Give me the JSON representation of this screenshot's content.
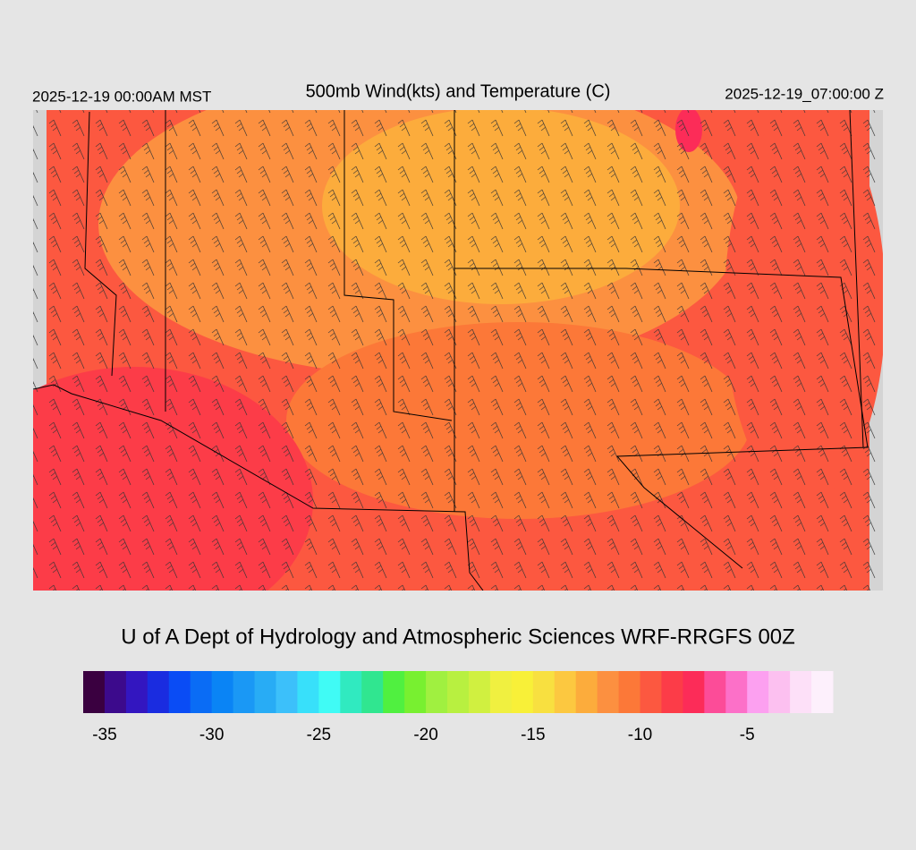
{
  "header": {
    "valid_local": "2025-12-19 00:00AM MST",
    "title": "500mb Wind(kts) and Temperature (C)",
    "valid_utc": "2025-12-19_07:00:00 Z"
  },
  "footer": {
    "credit": "U of A Dept of Hydrology and Atmospheric Sciences WRF-RRGFS 00Z"
  },
  "colorbar": {
    "lim": [
      -36,
      -1
    ],
    "ticks": [
      -35,
      -30,
      -25,
      -20,
      -15,
      -10,
      -5
    ],
    "colors": [
      "#3a0040",
      "#3c0a8c",
      "#3316c0",
      "#1a2ce0",
      "#0a4cf5",
      "#0a6cf5",
      "#0a84f5",
      "#1a98f5",
      "#28acf5",
      "#3cc0fa",
      "#38e0fa",
      "#40fbf5",
      "#30eac0",
      "#30e690",
      "#50f040",
      "#78f030",
      "#a0f040",
      "#b8f040",
      "#d0f040",
      "#f0f040",
      "#f8f038",
      "#f8e040",
      "#fcc840",
      "#fcac3c",
      "#fc9040",
      "#fc7838",
      "#fc5840",
      "#fc3c48",
      "#fc2c58",
      "#fc4c98",
      "#fc70c8",
      "#fca0f0",
      "#fcc0f0",
      "#fde0f8",
      "#fdf0fc"
    ]
  }
}
